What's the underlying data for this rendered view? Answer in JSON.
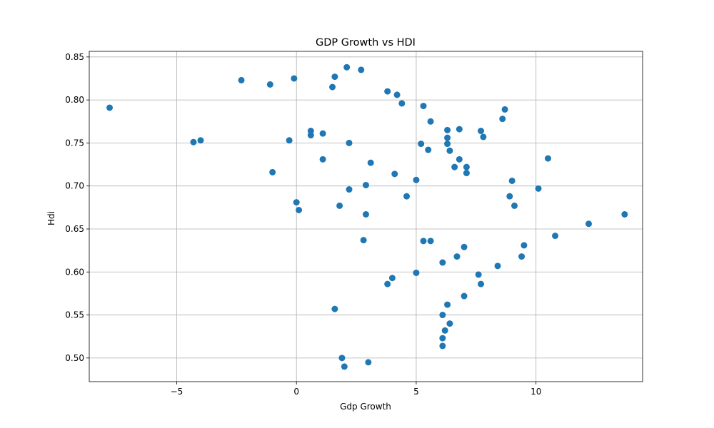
{
  "chart_data": {
    "type": "scatter",
    "title": "GDP Growth vs HDI",
    "xlabel": "Gdp Growth",
    "ylabel": "Hdi",
    "xlim": [
      -8.65,
      14.45
    ],
    "ylim": [
      0.4725,
      0.8565
    ],
    "xticks": [
      -5,
      0,
      5,
      10
    ],
    "xtick_labels": [
      "−5",
      "0",
      "5",
      "10"
    ],
    "yticks": [
      0.5,
      0.55,
      0.6,
      0.65,
      0.7,
      0.75,
      0.8,
      0.85
    ],
    "ytick_labels": [
      "0.50",
      "0.55",
      "0.60",
      "0.65",
      "0.70",
      "0.75",
      "0.80",
      "0.85"
    ],
    "grid": true,
    "marker_color": "#1f77b4",
    "x": [
      -7.8,
      -4.3,
      -4.0,
      -2.3,
      -1.1,
      -1.0,
      -0.3,
      -0.1,
      0.0,
      0.1,
      0.6,
      0.6,
      1.1,
      1.1,
      1.5,
      1.6,
      1.6,
      1.8,
      2.1,
      2.2,
      2.2,
      1.9,
      2.0,
      2.8,
      2.9,
      2.9,
      3.0,
      2.7,
      3.1,
      3.8,
      3.8,
      4.0,
      4.1,
      4.2,
      4.4,
      4.6,
      5.0,
      5.0,
      5.3,
      5.3,
      5.2,
      5.5,
      5.6,
      5.6,
      6.1,
      6.1,
      6.1,
      6.1,
      6.2,
      6.3,
      6.3,
      6.3,
      6.3,
      6.4,
      6.4,
      6.6,
      6.7,
      6.8,
      6.8,
      7.0,
      7.0,
      7.1,
      7.1,
      7.6,
      7.7,
      7.7,
      7.8,
      8.4,
      8.6,
      8.7,
      8.9,
      9.0,
      9.1,
      9.4,
      9.5,
      10.1,
      10.5,
      10.8,
      12.2,
      13.7
    ],
    "y": [
      0.791,
      0.751,
      0.753,
      0.823,
      0.818,
      0.716,
      0.753,
      0.825,
      0.681,
      0.672,
      0.764,
      0.759,
      0.761,
      0.731,
      0.815,
      0.827,
      0.557,
      0.677,
      0.838,
      0.696,
      0.75,
      0.5,
      0.49,
      0.637,
      0.701,
      0.667,
      0.495,
      0.835,
      0.727,
      0.81,
      0.586,
      0.593,
      0.714,
      0.806,
      0.796,
      0.688,
      0.707,
      0.599,
      0.793,
      0.636,
      0.749,
      0.742,
      0.775,
      0.636,
      0.611,
      0.55,
      0.514,
      0.523,
      0.532,
      0.765,
      0.756,
      0.749,
      0.562,
      0.741,
      0.54,
      0.722,
      0.618,
      0.731,
      0.766,
      0.629,
      0.572,
      0.722,
      0.715,
      0.597,
      0.764,
      0.586,
      0.757,
      0.607,
      0.778,
      0.789,
      0.688,
      0.706,
      0.677,
      0.618,
      0.631,
      0.697,
      0.732,
      0.642,
      0.656,
      0.667
    ]
  }
}
